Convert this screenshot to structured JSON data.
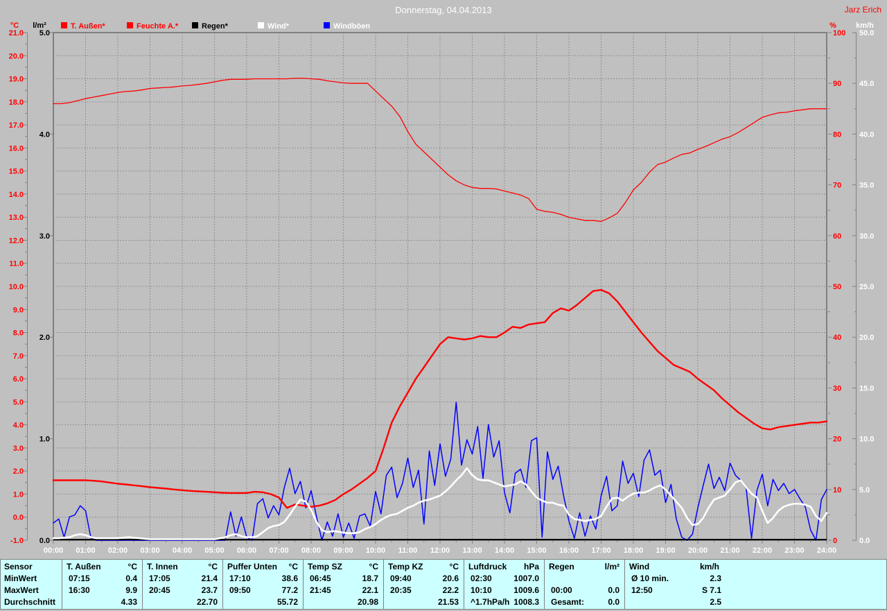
{
  "header": {
    "title": "Donnerstag, 04.04.2013",
    "author": "Jarz Erich"
  },
  "colors": {
    "background": "#c0c0c0",
    "grid": "#8f8f8f",
    "axis": "#808080",
    "title_text": "#ffffff",
    "author_text": "#ff0000",
    "table_background": "#ccffff",
    "table_text": "#000000",
    "temp_series": "#ff0000",
    "humidity_series": "#ff0000",
    "rain_series": "#000000",
    "wind_series": "#ffffff",
    "gust_series": "#0000ff"
  },
  "legend": [
    {
      "label": "T. Außen*",
      "box": "#ff0000",
      "text": "#ff0000"
    },
    {
      "label": "Feuchte A.*",
      "box": "#ff0000",
      "text": "#ff0000"
    },
    {
      "label": "Regen*",
      "box": "#000000",
      "text": "#000000"
    },
    {
      "label": "Wind*",
      "box": "#ffffff",
      "text": "#ffffff"
    },
    {
      "label": "Windböen",
      "box": "#0000ff",
      "text": "#ffffff"
    }
  ],
  "chart_data": {
    "type": "line",
    "title": "Donnerstag, 04.04.2013",
    "x_axis": {
      "start_hour": 0,
      "end_hour": 24,
      "tick_every_hours": 1,
      "label_suffix": ":00"
    },
    "y_axes": [
      {
        "id": "temp",
        "unit": "°C",
        "min": -1,
        "max": 21,
        "tick_step": 1,
        "side": "left-outer",
        "color": "#ff0000",
        "decimals": 1
      },
      {
        "id": "rain",
        "unit": "l/m²",
        "min": 0,
        "max": 5,
        "tick_step": 1,
        "side": "left-inner",
        "color": "#000000",
        "decimals": 1
      },
      {
        "id": "humidity",
        "unit": "%",
        "min": 0,
        "max": 100,
        "tick_step": 10,
        "side": "right-inner",
        "color": "#ff0000",
        "decimals": 0
      },
      {
        "id": "wind",
        "unit": "km/h",
        "min": 0,
        "max": 50,
        "tick_step": 5,
        "side": "right-outer",
        "color": "#ffffff",
        "decimals": 1
      }
    ],
    "series": [
      {
        "name": "Feuchte A.",
        "axis": "humidity",
        "color": "#ff0000",
        "width": 1.3,
        "interval_minutes": 15,
        "values": [
          86,
          86,
          86.2,
          86.6,
          87,
          87.3,
          87.6,
          87.9,
          88.2,
          88.4,
          88.5,
          88.7,
          89,
          89.1,
          89.2,
          89.3,
          89.5,
          89.6,
          89.8,
          90,
          90.3,
          90.6,
          90.8,
          90.8,
          90.8,
          90.9,
          90.9,
          90.9,
          90.9,
          90.9,
          91,
          91,
          90.9,
          90.8,
          90.5,
          90.3,
          90.1,
          90,
          90,
          90,
          88.5,
          87,
          85.5,
          83.5,
          80.5,
          78,
          76.5,
          75,
          73.5,
          72,
          70.8,
          70,
          69.5,
          69.3,
          69.3,
          69.2,
          68.8,
          68.4,
          68,
          67.3,
          65.2,
          64.8,
          64.6,
          64.2,
          63.6,
          63.3,
          63,
          63,
          62.8,
          63.5,
          64.4,
          66.5,
          69,
          70.5,
          72.5,
          74,
          74.5,
          75.3,
          76,
          76.3,
          77,
          77.6,
          78.3,
          79,
          79.5,
          80.3,
          81.3,
          82.3,
          83.3,
          83.8,
          84.2,
          84.3,
          84.6,
          84.8,
          85,
          85,
          85
        ]
      },
      {
        "name": "Windböen",
        "axis": "wind",
        "color": "#0000ff",
        "width": 1.5,
        "interval_minutes": 10,
        "values": [
          1.7,
          2.1,
          0.3,
          2.3,
          2.5,
          3.4,
          2.9,
          0.2,
          0,
          0,
          0,
          0,
          0,
          0,
          0,
          0,
          0,
          0,
          0,
          0,
          0,
          0,
          0,
          0,
          0,
          0,
          0,
          0,
          0,
          0,
          0,
          0,
          0,
          2.8,
          0.4,
          2.3,
          0.3,
          0,
          3.6,
          4.1,
          2.2,
          3.4,
          2.5,
          5.2,
          7.1,
          4.6,
          5.8,
          3.2,
          4.9,
          2.3,
          0,
          1.8,
          0.4,
          2.6,
          0.3,
          1.7,
          0.2,
          2.4,
          2.6,
          1.4,
          4.8,
          2.6,
          6.4,
          7.2,
          4.2,
          5.6,
          8.1,
          5.2,
          6.9,
          1.6,
          8.8,
          5.4,
          9.5,
          6.3,
          8,
          13.6,
          7.4,
          9.9,
          8.5,
          11.2,
          6.1,
          11.4,
          8.2,
          9.8,
          4.7,
          2.7,
          6.6,
          7,
          5.2,
          9.8,
          10.1,
          0.3,
          8.7,
          6,
          7.3,
          4.4,
          1.9,
          0.2,
          2.7,
          0.4,
          2.4,
          1.1,
          4.4,
          6.3,
          2.9,
          3.4,
          7.8,
          5.6,
          6.6,
          4.3,
          7.9,
          8.9,
          6.4,
          6.9,
          3.7,
          5.5,
          2.1,
          0.3,
          0,
          0.6,
          3.2,
          5.4,
          7.5,
          5.1,
          6.2,
          4.9,
          7.6,
          6.4,
          5.9,
          5.1,
          0.2,
          4.9,
          6.5,
          3.4,
          6,
          4.9,
          5.6,
          4.6,
          5,
          4.1,
          3.3,
          1,
          0,
          4,
          5
        ]
      },
      {
        "name": "Regen",
        "axis": "rain",
        "color": "#000000",
        "width": 2,
        "constant_value": 0
      },
      {
        "name": "T. Außen",
        "axis": "temp",
        "color": "#ff0000",
        "width": 2.4,
        "interval_minutes": 15,
        "values": [
          1.6,
          1.6,
          1.6,
          1.6,
          1.6,
          1.58,
          1.55,
          1.5,
          1.45,
          1.42,
          1.38,
          1.34,
          1.3,
          1.27,
          1.24,
          1.2,
          1.17,
          1.14,
          1.12,
          1.1,
          1.08,
          1.06,
          1.05,
          1.05,
          1.05,
          1.1,
          1.08,
          1,
          0.85,
          0.4,
          0.55,
          0.5,
          0.45,
          0.5,
          0.6,
          0.75,
          1,
          1.2,
          1.45,
          1.7,
          2,
          3,
          4.1,
          4.8,
          5.4,
          6,
          6.5,
          7,
          7.5,
          7.8,
          7.75,
          7.7,
          7.75,
          7.85,
          7.8,
          7.8,
          8,
          8.25,
          8.2,
          8.35,
          8.4,
          8.45,
          8.85,
          9.05,
          8.95,
          9.2,
          9.5,
          9.8,
          9.85,
          9.7,
          9.35,
          8.9,
          8.45,
          8,
          7.6,
          7.2,
          6.9,
          6.6,
          6.45,
          6.3,
          6,
          5.75,
          5.5,
          5.15,
          4.85,
          4.55,
          4.3,
          4.05,
          3.85,
          3.8,
          3.9,
          3.95,
          4,
          4.05,
          4.1,
          4.1,
          4.15
        ]
      },
      {
        "name": "Wind",
        "axis": "wind",
        "color": "#ffffff",
        "width": 2.6,
        "interval_minutes": 10,
        "values": [
          0.2,
          0.2,
          0.25,
          0.3,
          0.5,
          0.6,
          0.5,
          0.3,
          0.2,
          0.2,
          0.2,
          0.2,
          0.2,
          0.25,
          0.3,
          0.25,
          0.2,
          0.15,
          0.1,
          0.1,
          0.1,
          0.1,
          0.1,
          0.1,
          0.1,
          0.1,
          0.1,
          0.1,
          0.1,
          0.1,
          0.1,
          0.2,
          0.3,
          0.5,
          0.6,
          0.4,
          0.3,
          0.3,
          0.4,
          0.8,
          1.2,
          1.4,
          1.5,
          1.8,
          2.5,
          3.3,
          4,
          3.8,
          3,
          1.8,
          1,
          0.8,
          0.9,
          0.85,
          0.75,
          0.7,
          0.7,
          0.8,
          1.1,
          1.3,
          1.6,
          2,
          2.3,
          2.5,
          2.6,
          2.9,
          3.2,
          3.4,
          3.7,
          3.9,
          4,
          4.2,
          4.4,
          4.8,
          5.3,
          5.9,
          6.4,
          7.1,
          6.4,
          6,
          5.9,
          5.9,
          5.7,
          5.5,
          5.3,
          5.4,
          5.5,
          5.8,
          5.5,
          4.8,
          4.2,
          3.9,
          3.7,
          3.7,
          3.5,
          3.4,
          2.5,
          2.1,
          2,
          1.9,
          2,
          2.1,
          2.4,
          3.3,
          4.1,
          4.2,
          3.9,
          4.3,
          4.6,
          4.7,
          4.7,
          4.9,
          5.2,
          5.4,
          5,
          4.4,
          3.8,
          3.2,
          2.2,
          1.5,
          1.6,
          2.2,
          3.2,
          4,
          4.2,
          4.4,
          5,
          5.7,
          5.9,
          5.2,
          4.6,
          4.2,
          2.9,
          1.7,
          2.2,
          2.9,
          3.3,
          3.5,
          3.6,
          3.6,
          3.5,
          3.3,
          2.4,
          1.9,
          2.7
        ]
      }
    ],
    "draw_order": [
      "Feuchte A.",
      "Windböen",
      "Regen",
      "T. Außen",
      "Wind"
    ],
    "grid": true
  },
  "table": {
    "row_labels": [
      "Sensor",
      "MinWert",
      "MaxWert",
      "Durchschnitt"
    ],
    "columns": [
      {
        "name": "T. Außen",
        "unit": "°C",
        "min": [
          "07:15",
          "0.4"
        ],
        "max": [
          "16:30",
          "9.9"
        ],
        "avg": [
          "",
          "4.33"
        ]
      },
      {
        "name": "T. Innen",
        "unit": "°C",
        "min": [
          "17:05",
          "21.4"
        ],
        "max": [
          "20:45",
          "23.7"
        ],
        "avg": [
          "",
          "22.70"
        ]
      },
      {
        "name": "Puffer Unten",
        "unit": "°C",
        "min": [
          "17:10",
          "38.6"
        ],
        "max": [
          "09:50",
          "77.2"
        ],
        "avg": [
          "",
          "55.72"
        ]
      },
      {
        "name": "Temp SZ",
        "unit": "°C",
        "min": [
          "06:45",
          "18.7"
        ],
        "max": [
          "21:45",
          "22.1"
        ],
        "avg": [
          "",
          "20.98"
        ]
      },
      {
        "name": "Temp KZ",
        "unit": "°C",
        "min": [
          "09:40",
          "20.6"
        ],
        "max": [
          "20:35",
          "22.2"
        ],
        "avg": [
          "",
          "21.53"
        ]
      },
      {
        "name": "Luftdruck",
        "unit": "hPa",
        "min": [
          "02:30",
          "1007.0"
        ],
        "max": [
          "10:10",
          "1009.6"
        ],
        "avg": [
          "^1.7hPa/h",
          "1008.3"
        ]
      },
      {
        "name": "Regen",
        "unit": "l/m²",
        "min": [
          "",
          ""
        ],
        "max": [
          "00:00",
          "0.0"
        ],
        "avg": [
          "Gesamt:",
          "0.0"
        ]
      },
      {
        "name": "Wind",
        "unit": "km/h",
        "min": [
          "Ø 10 min.",
          "2.3"
        ],
        "max": [
          "12:50",
          "S 7.1"
        ],
        "avg": [
          "",
          "2.5"
        ]
      }
    ]
  }
}
